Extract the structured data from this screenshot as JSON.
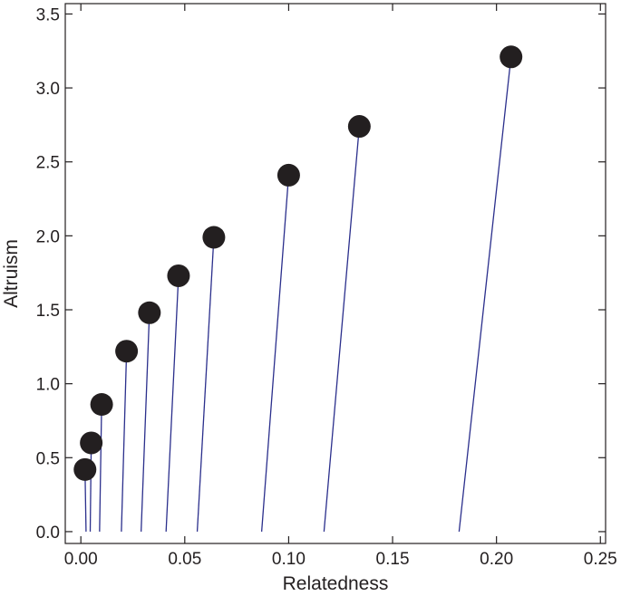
{
  "chart_data": {
    "type": "scatter",
    "title": "",
    "xlabel": "Relatedness",
    "ylabel": "Altruism",
    "xlim": [
      -0.0075,
      0.2525
    ],
    "ylim": [
      -0.08,
      3.57
    ],
    "xticks": [
      0.0,
      0.05,
      0.1,
      0.15,
      0.2,
      0.25
    ],
    "xtick_labels": [
      "0.00",
      "0.05",
      "0.10",
      "0.15",
      "0.20",
      "0.25"
    ],
    "yticks": [
      0.0,
      0.5,
      1.0,
      1.5,
      2.0,
      2.5,
      3.0,
      3.5
    ],
    "ytick_labels": [
      "0.0",
      "0.5",
      "1.0",
      "1.5",
      "2.0",
      "2.5",
      "3.0",
      "3.5"
    ],
    "grid": false,
    "marker_color": "#231f20",
    "line_color": "#2b2f8c",
    "points": [
      {
        "x": 0.002,
        "y": 0.42,
        "line_start_x": 0.0025
      },
      {
        "x": 0.005,
        "y": 0.6,
        "line_start_x": 0.0045
      },
      {
        "x": 0.01,
        "y": 0.86,
        "line_start_x": 0.009
      },
      {
        "x": 0.022,
        "y": 1.22,
        "line_start_x": 0.0195
      },
      {
        "x": 0.033,
        "y": 1.48,
        "line_start_x": 0.029
      },
      {
        "x": 0.047,
        "y": 1.73,
        "line_start_x": 0.041
      },
      {
        "x": 0.064,
        "y": 1.99,
        "line_start_x": 0.056
      },
      {
        "x": 0.1,
        "y": 2.41,
        "line_start_x": 0.087
      },
      {
        "x": 0.134,
        "y": 2.74,
        "line_start_x": 0.117
      },
      {
        "x": 0.207,
        "y": 3.21,
        "line_start_x": 0.182
      }
    ]
  }
}
